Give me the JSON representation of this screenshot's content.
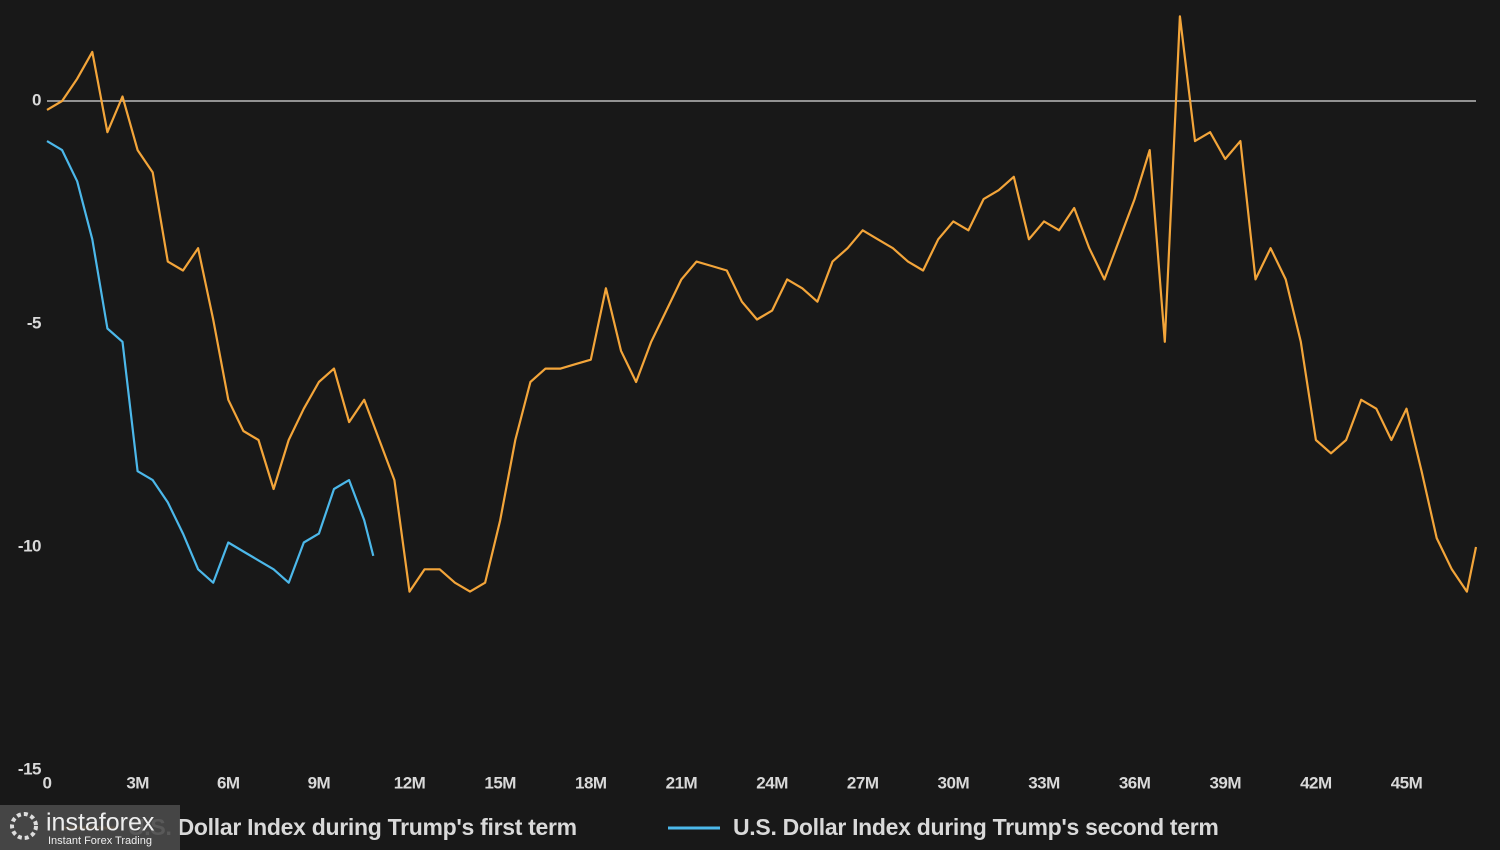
{
  "chart_data": {
    "type": "line",
    "xlim": [
      0,
      47.3
    ],
    "ylim": [
      -15,
      2
    ],
    "xticks": [
      0,
      {
        "value": 3,
        "label": "3M"
      },
      {
        "value": 6,
        "label": "6M"
      },
      {
        "value": 9,
        "label": "9M"
      },
      {
        "value": 12,
        "label": "12M"
      },
      {
        "value": 15,
        "label": "15M"
      },
      {
        "value": 18,
        "label": "18M"
      },
      {
        "value": 21,
        "label": "21M"
      },
      {
        "value": 24,
        "label": "24M"
      },
      {
        "value": 27,
        "label": "27M"
      },
      {
        "value": 30,
        "label": "30M"
      },
      {
        "value": 33,
        "label": "33M"
      },
      {
        "value": 36,
        "label": "36M"
      },
      {
        "value": 39,
        "label": "39M"
      },
      {
        "value": 42,
        "label": "42M"
      },
      {
        "value": 45,
        "label": "45M"
      }
    ],
    "yticks": [
      0,
      -5,
      -10,
      -15
    ],
    "zero_line": true,
    "series": [
      {
        "name": "U.S. Dollar Index during Trump's first term",
        "color": "#f3a53a",
        "x": [
          0,
          0.5,
          1,
          1.5,
          2,
          2.5,
          3,
          3.5,
          4,
          4.5,
          5,
          5.5,
          6,
          6.5,
          7,
          7.5,
          8,
          8.5,
          9,
          9.5,
          10,
          10.5,
          11,
          11.5,
          12,
          12.5,
          13,
          13.5,
          14,
          14.5,
          15,
          15.5,
          16,
          16.5,
          17,
          17.5,
          18,
          18.5,
          19,
          19.5,
          20,
          20.5,
          21,
          21.5,
          22,
          22.5,
          23,
          23.5,
          24,
          24.5,
          25,
          25.5,
          26,
          26.5,
          27,
          27.5,
          28,
          28.5,
          29,
          29.5,
          30,
          30.5,
          31,
          31.5,
          32,
          32.5,
          33,
          33.5,
          34,
          34.5,
          35,
          35.5,
          36,
          36.5,
          37,
          37.5,
          38,
          38.5,
          39,
          39.5,
          40,
          40.5,
          41,
          41.5,
          42,
          42.5,
          43,
          43.5,
          44,
          44.5,
          45,
          45.5,
          46,
          46.5,
          47,
          47.3
        ],
        "values": [
          -0.2,
          0,
          0.5,
          1.1,
          -0.7,
          0.1,
          -1.1,
          -1.6,
          -3.6,
          -3.8,
          -3.3,
          -4.9,
          -6.7,
          -7.4,
          -7.6,
          -8.7,
          -7.6,
          -6.9,
          -6.3,
          -6.0,
          -7.2,
          -6.7,
          -7.6,
          -8.5,
          -11.0,
          -10.5,
          -10.5,
          -10.8,
          -11.0,
          -10.8,
          -9.4,
          -7.6,
          -6.3,
          -6.0,
          -6.0,
          -5.9,
          -5.8,
          -4.2,
          -5.6,
          -6.3,
          -5.4,
          -4.7,
          -4.0,
          -3.6,
          -3.7,
          -3.8,
          -4.5,
          -4.9,
          -4.7,
          -4.0,
          -4.2,
          -4.5,
          -3.6,
          -3.3,
          -2.9,
          -3.1,
          -3.3,
          -3.6,
          -3.8,
          -3.1,
          -2.7,
          -2.9,
          -2.2,
          -2.0,
          -1.7,
          -3.1,
          -2.7,
          -2.9,
          -2.4,
          -3.3,
          -4.0,
          -3.1,
          -2.2,
          -1.1,
          -5.4,
          1.9,
          -0.9,
          -0.7,
          -1.3,
          -0.9,
          -4.0,
          -3.3,
          -4.0,
          -5.4,
          -7.6,
          -7.9,
          -7.6,
          -6.7,
          -6.9,
          -7.6,
          -6.9,
          -8.3,
          -9.8,
          -10.5,
          -11.0,
          -10.0
        ]
      },
      {
        "name": "U.S. Dollar Index during Trump's second term",
        "color": "#4cb8ea",
        "x": [
          0,
          0.5,
          1,
          1.5,
          2,
          2.5,
          3,
          3.5,
          4,
          4.5,
          5,
          5.5,
          6,
          6.5,
          7,
          7.5,
          8,
          8.5,
          9,
          9.5,
          10,
          10.5,
          10.8
        ],
        "values": [
          -0.9,
          -1.1,
          -1.8,
          -3.1,
          -5.1,
          -5.4,
          -8.3,
          -8.5,
          -9.0,
          -9.7,
          -10.5,
          -10.8,
          -9.9,
          -10.1,
          -10.3,
          -10.5,
          -10.8,
          -9.9,
          -9.7,
          -8.7,
          -8.5,
          -9.4,
          -10.2
        ]
      }
    ]
  },
  "watermark": {
    "brand": "instaforex",
    "tagline": "Instant Forex Trading"
  }
}
